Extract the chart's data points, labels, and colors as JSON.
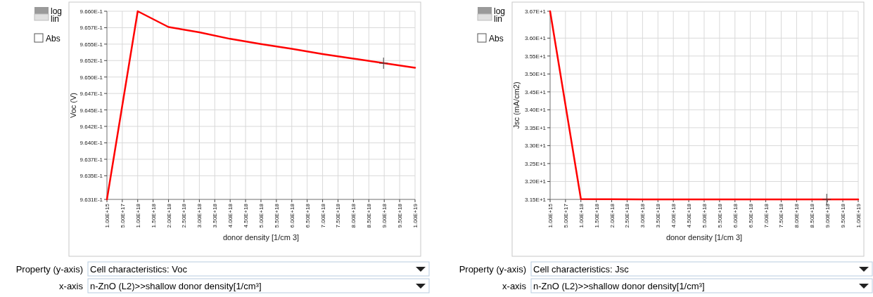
{
  "chart_data": [
    {
      "type": "line",
      "xlabel": "donor density [1/cm 3]",
      "ylabel": "Voc (V)",
      "x": [
        1000000000000000.0,
        1e+18,
        2e+18,
        3e+18,
        4e+18,
        5e+18,
        6e+18,
        7e+18,
        8e+18,
        9e+18,
        1e+19
      ],
      "series": [
        {
          "color": "#ff0000",
          "values": [
            0.96314,
            0.966,
            0.96576,
            0.96568,
            0.96558,
            0.9655,
            0.96543,
            0.96535,
            0.96528,
            0.96521,
            0.96514
          ]
        }
      ],
      "xlim": [
        1000000000000000.0,
        1e+19
      ],
      "xticks": [
        {
          "value": 1000000000000000.0,
          "label": "1.00E+15"
        },
        {
          "value": 5e+17,
          "label": "5.00E+17"
        },
        {
          "value": 1e+18,
          "label": "1.00E+18"
        },
        {
          "value": 1.5e+18,
          "label": "1.50E+18"
        },
        {
          "value": 2e+18,
          "label": "2.00E+18"
        },
        {
          "value": 2.5e+18,
          "label": "2.50E+18"
        },
        {
          "value": 3e+18,
          "label": "3.00E+18"
        },
        {
          "value": 3.5e+18,
          "label": "3.50E+18"
        },
        {
          "value": 4e+18,
          "label": "4.00E+18"
        },
        {
          "value": 4.5e+18,
          "label": "4.50E+18"
        },
        {
          "value": 5e+18,
          "label": "5.00E+18"
        },
        {
          "value": 5.5e+18,
          "label": "5.50E+18"
        },
        {
          "value": 6e+18,
          "label": "6.00E+18"
        },
        {
          "value": 6.5e+18,
          "label": "6.50E+18"
        },
        {
          "value": 7e+18,
          "label": "7.00E+18"
        },
        {
          "value": 7.5e+18,
          "label": "7.50E+18"
        },
        {
          "value": 8e+18,
          "label": "8.00E+18"
        },
        {
          "value": 8.5e+18,
          "label": "8.50E+18"
        },
        {
          "value": 9e+18,
          "label": "9.00E+18"
        },
        {
          "value": 9.5e+18,
          "label": "9.50E+18"
        },
        {
          "value": 1e+19,
          "label": "1.00E+19"
        }
      ],
      "ylim": [
        0.96314,
        0.966
      ],
      "yticks": [
        {
          "value": 0.96314,
          "label": "9.631E-1"
        },
        {
          "value": 0.9635,
          "label": "9.635E-1"
        },
        {
          "value": 0.96375,
          "label": "9.637E-1"
        },
        {
          "value": 0.964,
          "label": "9.640E-1"
        },
        {
          "value": 0.96425,
          "label": "9.642E-1"
        },
        {
          "value": 0.9645,
          "label": "9.645E-1"
        },
        {
          "value": 0.96475,
          "label": "9.647E-1"
        },
        {
          "value": 0.965,
          "label": "9.650E-1"
        },
        {
          "value": 0.96525,
          "label": "9.652E-1"
        },
        {
          "value": 0.9655,
          "label": "9.655E-1"
        },
        {
          "value": 0.96575,
          "label": "9.657E-1"
        },
        {
          "value": 0.966,
          "label": "9.660E-1"
        }
      ],
      "grid": true,
      "annotations": [
        "log",
        "lin",
        "Abs",
        "Property (y-axis)",
        "Cell characteristics: Voc",
        "x-axis",
        "n-ZnO (L2)>>shallow donor density[1/cm³]"
      ]
    },
    {
      "type": "line",
      "xlabel": "donor density [1/cm 3]",
      "ylabel": "Jsc (mA/cm2)",
      "x": [
        1000000000000000.0,
        1e+18,
        2e+18,
        3e+18,
        4e+18,
        5e+18,
        6e+18,
        7e+18,
        8e+18,
        9e+18,
        1e+19
      ],
      "series": [
        {
          "color": "#ff0000",
          "values": [
            36.75,
            31.51,
            31.505,
            31.5,
            31.5,
            31.5,
            31.5,
            31.5,
            31.5,
            31.5,
            31.5
          ]
        }
      ],
      "xlim": [
        1000000000000000.0,
        1e+19
      ],
      "xticks": [
        {
          "value": 1000000000000000.0,
          "label": "1.00E+15"
        },
        {
          "value": 5e+17,
          "label": "5.00E+17"
        },
        {
          "value": 1e+18,
          "label": "1.00E+18"
        },
        {
          "value": 1.5e+18,
          "label": "1.50E+18"
        },
        {
          "value": 2e+18,
          "label": "2.00E+18"
        },
        {
          "value": 2.5e+18,
          "label": "2.50E+18"
        },
        {
          "value": 3e+18,
          "label": "3.00E+18"
        },
        {
          "value": 3.5e+18,
          "label": "3.50E+18"
        },
        {
          "value": 4e+18,
          "label": "4.00E+18"
        },
        {
          "value": 4.5e+18,
          "label": "4.50E+18"
        },
        {
          "value": 5e+18,
          "label": "5.00E+18"
        },
        {
          "value": 5.5e+18,
          "label": "5.50E+18"
        },
        {
          "value": 6e+18,
          "label": "6.00E+18"
        },
        {
          "value": 6.5e+18,
          "label": "6.50E+18"
        },
        {
          "value": 7e+18,
          "label": "7.00E+18"
        },
        {
          "value": 7.5e+18,
          "label": "7.50E+18"
        },
        {
          "value": 8e+18,
          "label": "8.00E+18"
        },
        {
          "value": 8.5e+18,
          "label": "8.50E+18"
        },
        {
          "value": 9e+18,
          "label": "9.00E+18"
        },
        {
          "value": 9.5e+18,
          "label": "9.50E+18"
        },
        {
          "value": 1e+19,
          "label": "1.00E+19"
        }
      ],
      "ylim": [
        31.5,
        36.75
      ],
      "yticks": [
        {
          "value": 31.5,
          "label": "3.15E+1"
        },
        {
          "value": 32,
          "label": "3.20E+1"
        },
        {
          "value": 32.5,
          "label": "3.25E+1"
        },
        {
          "value": 33,
          "label": "3.30E+1"
        },
        {
          "value": 33.5,
          "label": "3.35E+1"
        },
        {
          "value": 34,
          "label": "3.40E+1"
        },
        {
          "value": 34.5,
          "label": "3.45E+1"
        },
        {
          "value": 35,
          "label": "3.50E+1"
        },
        {
          "value": 35.5,
          "label": "3.55E+1"
        },
        {
          "value": 36,
          "label": "3.60E+1"
        },
        {
          "value": 36.75,
          "label": "3.67E+1"
        }
      ],
      "grid": true,
      "annotations": [
        "log",
        "lin",
        "Abs",
        "Property (y-axis)",
        "Cell characteristics: Jsc",
        "x-axis",
        "n-ZnO (L2)>>shallow donor density[1/cm³]"
      ]
    }
  ]
}
